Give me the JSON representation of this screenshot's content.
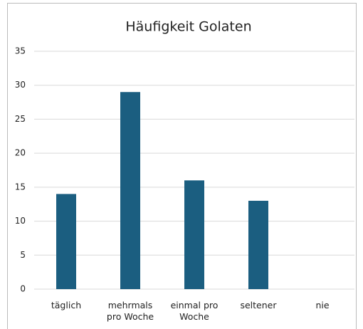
{
  "chart_data": {
    "type": "bar",
    "title": "Häufigkeit Golaten",
    "categories": [
      "täglich",
      "mehrmals pro Woche",
      "einmal pro Woche",
      "seltener",
      "nie"
    ],
    "values": [
      14,
      29,
      16,
      13,
      0
    ],
    "color": "#1b5e80",
    "ylim": [
      0,
      35
    ],
    "yticks": [
      0,
      5,
      10,
      15,
      20,
      25,
      30,
      35
    ],
    "grid": true
  }
}
